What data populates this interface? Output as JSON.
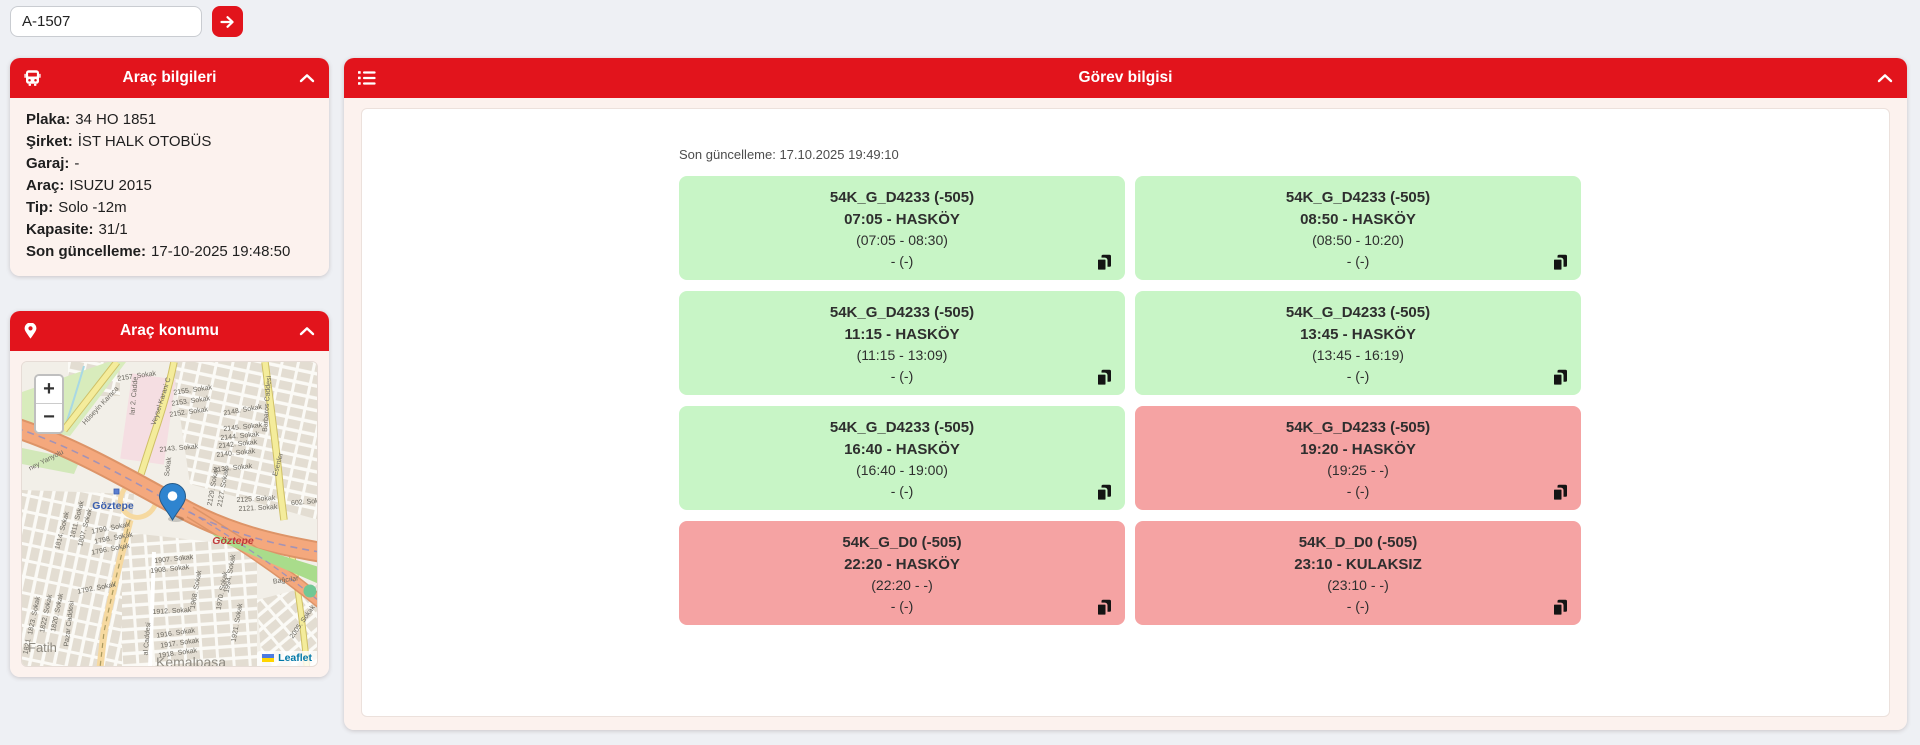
{
  "colors": {
    "brand_red": "#e2141c",
    "card_green": "#c8f5c6",
    "card_red": "#f5a3a3"
  },
  "search": {
    "value": "A-1507"
  },
  "vehicle_info": {
    "title": "Araç bilgileri",
    "fields": [
      {
        "label": "Plaka:",
        "value": "34 HO 1851"
      },
      {
        "label": "Şirket:",
        "value": "İST HALK OTOBÜS"
      },
      {
        "label": "Garaj:",
        "value": "-"
      },
      {
        "label": "Araç:",
        "value": "ISUZU 2015"
      },
      {
        "label": "Tip:",
        "value": "Solo -12m"
      },
      {
        "label": "Kapasite:",
        "value": "31/1"
      },
      {
        "label": "Son güncelleme:",
        "value": "17-10-2025 19:48:50"
      }
    ]
  },
  "vehicle_location": {
    "title": "Araç konumu",
    "map": {
      "zoom_in": "+",
      "zoom_out": "−",
      "attribution": "Leaflet",
      "station_label": "Göztepe",
      "highway_label": "Göztepe",
      "district_labels": [
        "Fatih",
        "Kemalpaşa"
      ],
      "street_labels": [
        "2157. Sokak",
        "2155. Sokak",
        "2153. Sokak",
        "2152. Sokak",
        "2148. Sokak",
        "2145. Sokak",
        "2144. Sokak",
        "2142. Sokak",
        "2140. Sokak",
        "2143. Sokak",
        "2138. Sokak",
        "Sokak",
        "2129. Sokak",
        "2127. Sokak",
        "2125. Sokak",
        "2121. Sokak",
        "602. Sok",
        "Esenler",
        "Barbaros Caddesi",
        "Hüseyin Karaca",
        "Veysel Karani C",
        "lar 2. Cadde",
        "ney Yanyolu",
        "1811. Sokak",
        "1814. Sokak",
        "1807. Sokak",
        "1799. Sokak",
        "1798. Sokak",
        "1796. Sokak",
        "1792. Sokak",
        "1823. Sokak",
        "1822. Sokak",
        "1820. Sokak",
        "1821",
        "Pazar Caddesi",
        "1907. Sokak",
        "1908. Sokak",
        "1912. Sokak",
        "1916. Sokak",
        "1917. Sokak",
        "1918. Sokak",
        "1968. Sokak",
        "1970. Sokak",
        "1994. Sokak",
        "1921. Sokak",
        "2005. Sokak",
        "Bağcılar",
        "al Caddesi"
      ]
    }
  },
  "task_info": {
    "title": "Görev bilgisi",
    "last_update": "Son güncelleme: 17.10.2025 19:49:10",
    "cards": [
      {
        "line1": "54K_G_D4233 (-505)",
        "line2": "07:05 - HASKÖY",
        "line3": "(07:05 - 08:30)",
        "line4": "- (-)",
        "status": "green"
      },
      {
        "line1": "54K_G_D4233 (-505)",
        "line2": "08:50 - HASKÖY",
        "line3": "(08:50 - 10:20)",
        "line4": "- (-)",
        "status": "green"
      },
      {
        "line1": "54K_G_D4233 (-505)",
        "line2": "11:15 - HASKÖY",
        "line3": "(11:15 - 13:09)",
        "line4": "- (-)",
        "status": "green"
      },
      {
        "line1": "54K_G_D4233 (-505)",
        "line2": "13:45 - HASKÖY",
        "line3": "(13:45 - 16:19)",
        "line4": "- (-)",
        "status": "green"
      },
      {
        "line1": "54K_G_D4233 (-505)",
        "line2": "16:40 - HASKÖY",
        "line3": "(16:40 - 19:00)",
        "line4": "- (-)",
        "status": "green"
      },
      {
        "line1": "54K_G_D4233 (-505)",
        "line2": "19:20 - HASKÖY",
        "line3": "(19:25 - -)",
        "line4": "- (-)",
        "status": "red"
      },
      {
        "line1": "54K_G_D0 (-505)",
        "line2": "22:20 - HASKÖY",
        "line3": "(22:20 - -)",
        "line4": "- (-)",
        "status": "red"
      },
      {
        "line1": "54K_D_D0 (-505)",
        "line2": "23:10 - KULAKSIZ",
        "line3": "(23:10 - -)",
        "line4": "- (-)",
        "status": "red"
      }
    ]
  }
}
